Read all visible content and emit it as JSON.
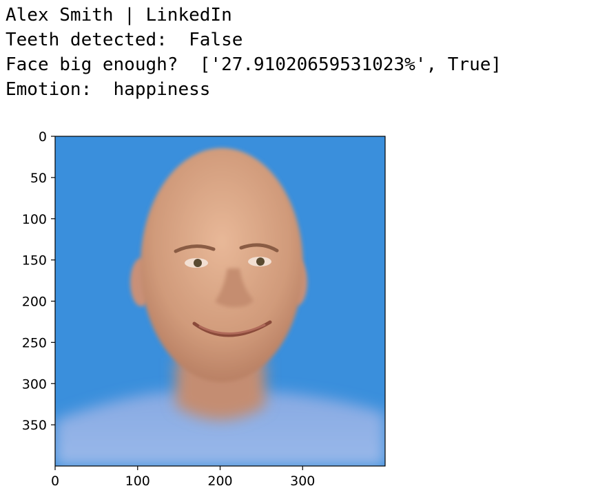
{
  "output": {
    "lines": [
      "Alex Smith | LinkedIn",
      "Teeth detected:  False",
      "Face big enough?  ['27.91020659531023%', True]",
      "Emotion:  happiness"
    ]
  },
  "image_plot": {
    "image_description": "cropped portrait photograph of a smiling bald man on a blue background",
    "colors": {
      "background": "#3a8fdc",
      "skin": "#d9a585",
      "shirt": "#8fb2e6"
    },
    "x_ticks": [
      "0",
      "100",
      "200",
      "300"
    ],
    "y_ticks": [
      "0",
      "50",
      "100",
      "150",
      "200",
      "250",
      "300",
      "350"
    ],
    "x_range": [
      0,
      400
    ],
    "y_range": [
      0,
      400
    ]
  }
}
